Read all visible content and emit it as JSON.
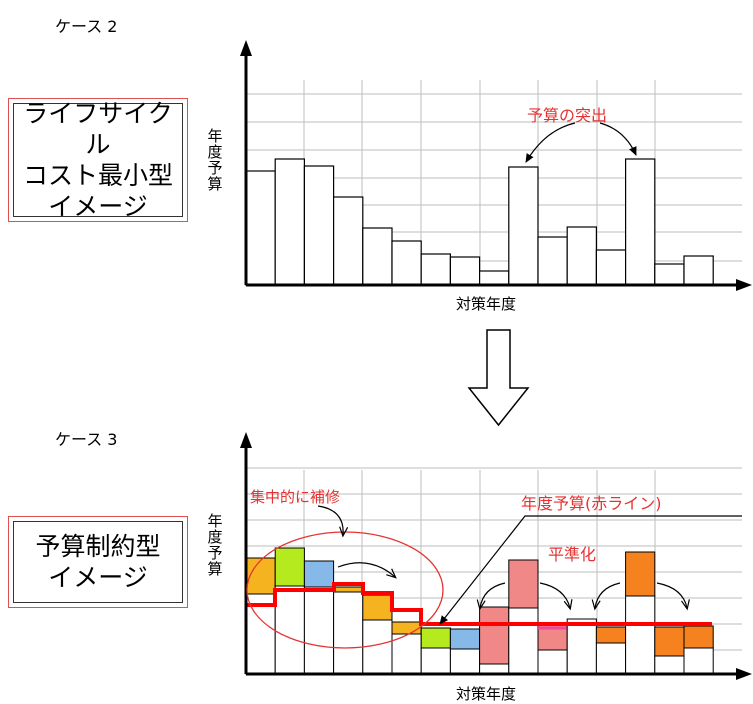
{
  "case2": {
    "title": "ケース 2",
    "box_lines": [
      "ライフサイクル",
      "コスト最小型",
      "イメージ"
    ],
    "y_axis_label": "年度予算",
    "x_axis_label": "対策年度",
    "annotation": "予算の突出",
    "bar_values": [
      114,
      126,
      119,
      88,
      57,
      44,
      31,
      28,
      14,
      118,
      48,
      58,
      35,
      126,
      21,
      29
    ]
  },
  "case3": {
    "title": "ケース 3",
    "box_lines": [
      "予算制約型",
      "イメージ"
    ],
    "y_axis_label": "年度予算",
    "x_axis_label": "対策年度",
    "annotations": {
      "focus": "集中的に補修",
      "budget_line": "年度予算(赤ライン)",
      "leveling": "平準化"
    },
    "colors": {
      "yellow": "#f6b320",
      "green": "#b4ea1e",
      "blue": "#86b9e8",
      "pink": "#f08888",
      "orange": "#f5821e",
      "magenta": "#f046a0",
      "budget_line": "#ff0000",
      "annotation": "#e53333"
    }
  }
}
